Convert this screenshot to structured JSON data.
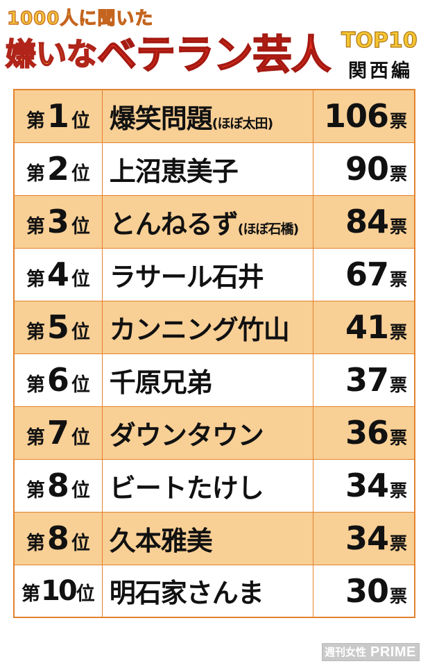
{
  "header": {
    "subtitle": "1000人に聞いた",
    "title_part1": "嫌いな",
    "title_part2": "ベテラン芸人",
    "top_label": "TOP10",
    "region": "関西編"
  },
  "rank_prefix": "第",
  "rank_suffix": "位",
  "vote_unit": "票",
  "rows": [
    {
      "rank": "1",
      "name": "爆笑問題",
      "note": "(ほぼ太田)",
      "votes": "106"
    },
    {
      "rank": "2",
      "name": "上沼恵美子",
      "note": "",
      "votes": "90"
    },
    {
      "rank": "3",
      "name": "とんねるず",
      "note": "(ほぼ石橋)",
      "votes": "84"
    },
    {
      "rank": "4",
      "name": "ラサール石井",
      "note": "",
      "votes": "67"
    },
    {
      "rank": "5",
      "name": "カンニング竹山",
      "note": "",
      "votes": "41"
    },
    {
      "rank": "6",
      "name": "千原兄弟",
      "note": "",
      "votes": "37"
    },
    {
      "rank": "7",
      "name": "ダウンタウン",
      "note": "",
      "votes": "36"
    },
    {
      "rank": "8",
      "name": "ビートたけし",
      "note": "",
      "votes": "34"
    },
    {
      "rank": "8",
      "name": "久本雅美",
      "note": "",
      "votes": "34"
    },
    {
      "rank": "10",
      "name": "明石家さんま",
      "note": "",
      "votes": "30"
    }
  ],
  "credit": {
    "part1": "週刊女性",
    "part2": "PRIME"
  },
  "colors": {
    "row_highlight": "#f8cf95",
    "border": "#e3822c",
    "title_red": "#e8301f",
    "title_yellow": "#f5c531"
  }
}
